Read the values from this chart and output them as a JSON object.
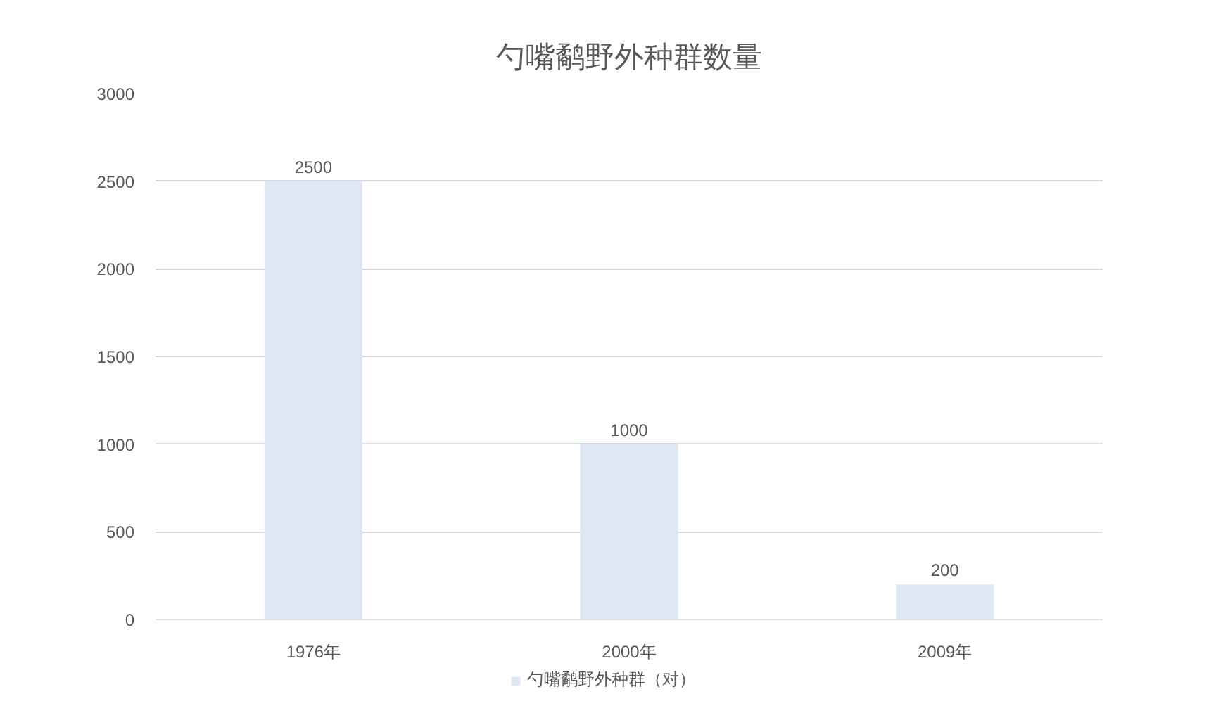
{
  "chart_data": {
    "type": "bar",
    "title": "勺嘴鹬野外种群数量",
    "categories": [
      "1976年",
      "2000年",
      "2009年"
    ],
    "series": [
      {
        "name": "勺嘴鹬野外种群（对）",
        "color": "#dde8f4",
        "values": [
          2500,
          1000,
          200
        ]
      }
    ],
    "ylim": [
      0,
      3000
    ],
    "yticks": [
      0,
      500,
      1000,
      1500,
      2000,
      2500,
      3000
    ],
    "grid": "y",
    "legend": "bottom",
    "data_labels": true
  }
}
